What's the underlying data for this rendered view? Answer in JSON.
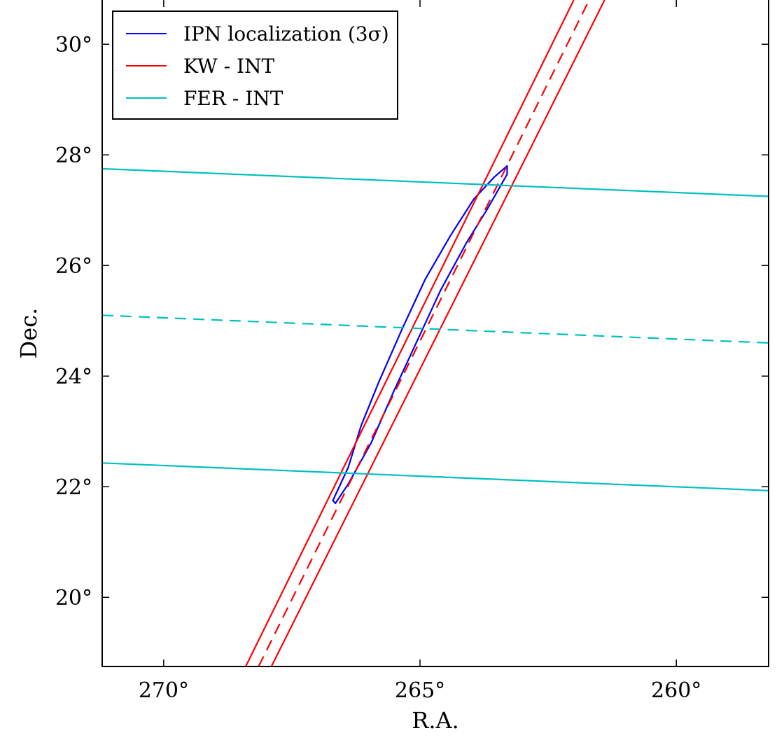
{
  "chart_data": {
    "type": "line",
    "title": "",
    "xlabel": "R.A.",
    "ylabel": "Dec.",
    "xlim": [
      271.2,
      258.2
    ],
    "ylim": [
      18.75,
      30.8
    ],
    "x_reversed": true,
    "grid": false,
    "legend_position": "top-left",
    "x_ticks": [
      270,
      265,
      260
    ],
    "x_tick_labels": [
      "270°",
      "265°",
      "260°"
    ],
    "y_ticks": [
      20,
      22,
      24,
      26,
      28,
      30
    ],
    "y_tick_labels": [
      "20°",
      "22°",
      "24°",
      "26°",
      "28°",
      "30°"
    ],
    "legend": [
      {
        "label": "IPN localization (3σ)",
        "color": "#0000ff"
      },
      {
        "label": "KW - INT",
        "color": "#ff0000"
      },
      {
        "label": "FER - INT",
        "color": "#00bfbf"
      }
    ],
    "series": [
      {
        "name": "IPN localization (3σ)",
        "color": "#0000ff",
        "style": "solid",
        "closed": true,
        "points": [
          [
            266.7,
            21.75
          ],
          [
            266.4,
            22.35
          ],
          [
            266.15,
            23.1
          ],
          [
            265.8,
            23.9
          ],
          [
            265.35,
            24.85
          ],
          [
            264.9,
            25.75
          ],
          [
            264.4,
            26.55
          ],
          [
            263.95,
            27.2
          ],
          [
            263.55,
            27.6
          ],
          [
            263.3,
            27.8
          ],
          [
            263.3,
            27.65
          ],
          [
            263.7,
            27.0
          ],
          [
            264.1,
            26.4
          ],
          [
            264.6,
            25.55
          ],
          [
            265.05,
            24.65
          ],
          [
            265.5,
            23.75
          ],
          [
            265.95,
            22.8
          ],
          [
            266.4,
            22.05
          ],
          [
            266.65,
            21.7
          ]
        ]
      },
      {
        "name": "KW - INT upper",
        "color": "#ff0000",
        "style": "solid",
        "points": [
          [
            268.4,
            18.75
          ],
          [
            262.0,
            30.8
          ]
        ]
      },
      {
        "name": "KW - INT center",
        "color": "#ff0000",
        "style": "dashed",
        "points": [
          [
            268.15,
            18.75
          ],
          [
            261.7,
            30.8
          ]
        ]
      },
      {
        "name": "KW - INT lower",
        "color": "#ff0000",
        "style": "solid",
        "points": [
          [
            267.9,
            18.75
          ],
          [
            261.4,
            30.8
          ]
        ]
      },
      {
        "name": "FER - INT upper",
        "color": "#00bfbf",
        "style": "solid",
        "points": [
          [
            271.2,
            27.75
          ],
          [
            258.2,
            27.25
          ]
        ]
      },
      {
        "name": "FER - INT center",
        "color": "#00bfbf",
        "style": "dashed",
        "points": [
          [
            271.2,
            25.1
          ],
          [
            258.2,
            24.6
          ]
        ]
      },
      {
        "name": "FER - INT lower",
        "color": "#00bfbf",
        "style": "solid",
        "points": [
          [
            271.2,
            22.43
          ],
          [
            258.2,
            21.93
          ]
        ]
      }
    ]
  }
}
